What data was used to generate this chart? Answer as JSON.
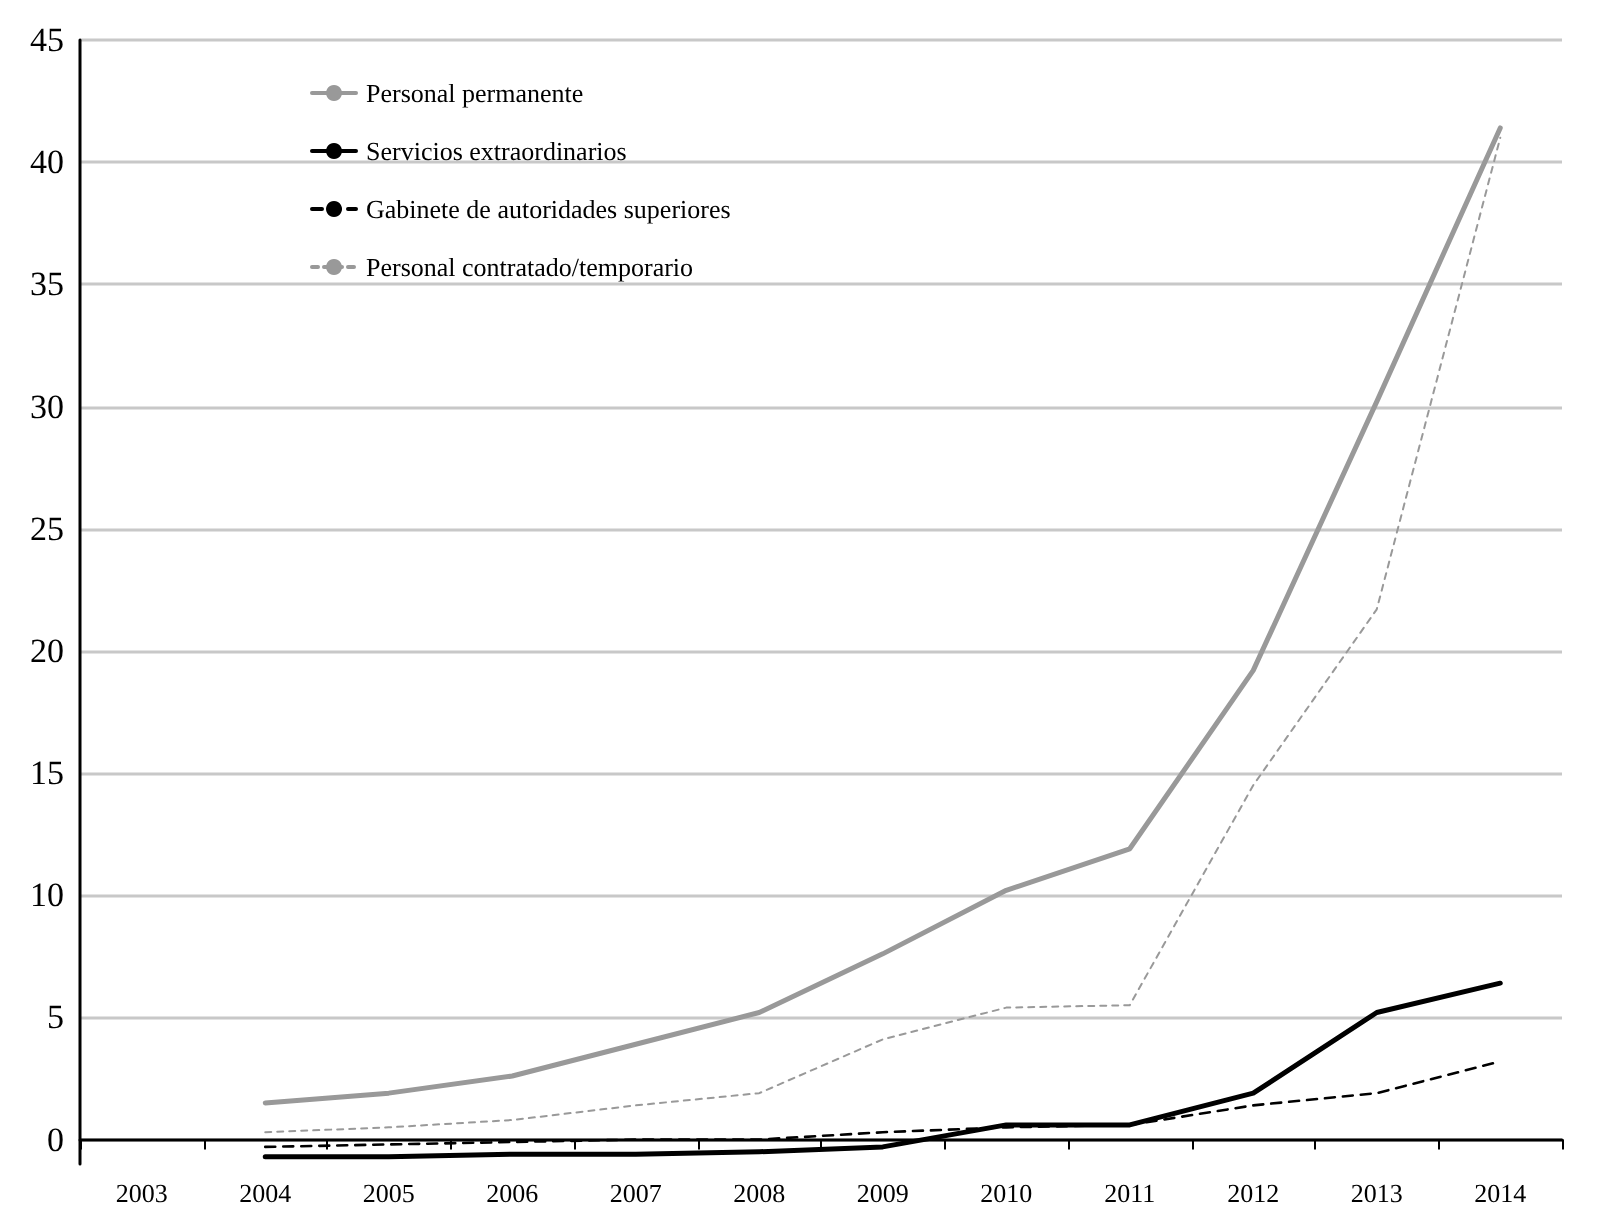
{
  "chart_data": {
    "type": "line",
    "categories": [
      "2003",
      "2004",
      "2005",
      "2006",
      "2007",
      "2008",
      "2009",
      "2010",
      "2011",
      "2012",
      "2013",
      "2014"
    ],
    "series": [
      {
        "name": "Personal permanente",
        "color": "#999999",
        "line_style": "solid",
        "values": [
          null,
          1.5,
          1.9,
          2.6,
          3.9,
          5.2,
          7.6,
          10.2,
          11.9,
          19.2,
          30.2,
          41.4
        ]
      },
      {
        "name": "Servicios extraordinarios",
        "color": "#000000",
        "line_style": "solid",
        "values": [
          null,
          -0.7,
          -0.7,
          -0.6,
          -0.6,
          -0.5,
          -0.3,
          0.6,
          0.6,
          1.9,
          5.2,
          6.4
        ]
      },
      {
        "name": "Gabinete de autoridades superiores",
        "color": "#000000",
        "line_style": "dashed",
        "values": [
          null,
          -0.3,
          -0.2,
          -0.1,
          0.0,
          0.0,
          0.3,
          0.5,
          0.6,
          1.4,
          1.9,
          3.2
        ]
      },
      {
        "name": "Personal contratado/temporario",
        "color": "#999999",
        "line_style": "dotted",
        "values": [
          null,
          0.3,
          0.5,
          0.8,
          1.4,
          1.9,
          4.1,
          5.4,
          5.5,
          14.5,
          21.7,
          41.0
        ]
      }
    ],
    "ylim": [
      -1,
      45
    ],
    "yticks": [
      0,
      5,
      10,
      15,
      20,
      25,
      30,
      35,
      40,
      45
    ],
    "grid": "y",
    "legend": "top left",
    "marker": "none"
  }
}
